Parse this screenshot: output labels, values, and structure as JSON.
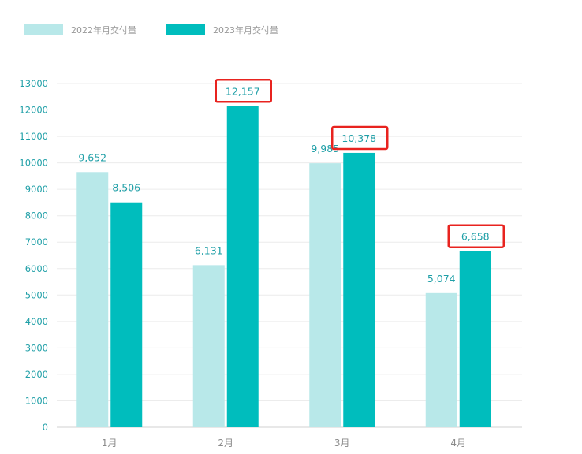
{
  "chart_data": {
    "type": "bar",
    "categories": [
      "1月",
      "2月",
      "3月",
      "4月"
    ],
    "series": [
      {
        "name": "2022年月交付量",
        "color": "#b8e8e9",
        "values": [
          9652,
          6131,
          9985,
          5074
        ],
        "labels": [
          "9,652",
          "6,131",
          "9,985",
          "5,074"
        ]
      },
      {
        "name": "2023年月交付量",
        "color": "#00bdbd",
        "values": [
          8506,
          12157,
          10378,
          6658
        ],
        "labels": [
          "8,506",
          "12,157",
          "10,378",
          "6,658"
        ]
      }
    ],
    "ylim": [
      0,
      13000
    ],
    "yticks": [
      0,
      1000,
      2000,
      3000,
      4000,
      5000,
      6000,
      7000,
      8000,
      9000,
      10000,
      11000,
      12000,
      13000
    ],
    "grid": true,
    "legend_position": "top-left",
    "highlight_color": "#e8231f",
    "highlighted_labels": [
      {
        "series": 1,
        "category": 1
      },
      {
        "series": 1,
        "category": 2
      },
      {
        "series": 1,
        "category": 3
      }
    ]
  }
}
